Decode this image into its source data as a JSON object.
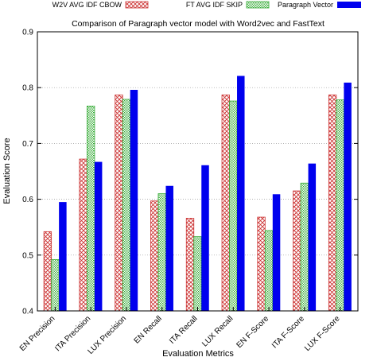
{
  "chart_data": {
    "type": "bar",
    "title": "Comparison of Paragraph vector model with Word2vec and FastText",
    "xlabel": "Evaluation Metrics",
    "ylabel": "Evaluation Score",
    "ylim": [
      0.4,
      0.9
    ],
    "yticks": [
      "0.4",
      "0.5",
      "0.6",
      "0.7",
      "0.8",
      "0.9"
    ],
    "grid": "horizontal dotted",
    "legend": "top, outside plot",
    "categories": [
      "EN Precision",
      "ITA Precision",
      "LUX Precision",
      "EN Recall",
      "ITA Recall",
      "LUX Recall",
      "EN F-Score",
      "ITA F-Score",
      "LUX F-Score"
    ],
    "series": [
      {
        "name": "W2V AVG IDF CBOW",
        "color": "#cc3333",
        "fill": "crosshatch",
        "values": [
          0.542,
          0.672,
          0.787,
          0.597,
          0.566,
          0.787,
          0.568,
          0.615,
          0.787
        ]
      },
      {
        "name": "FT AVG IDF SKIP",
        "color": "#33aa33",
        "fill": "dots",
        "values": [
          0.492,
          0.767,
          0.779,
          0.61,
          0.533,
          0.776,
          0.544,
          0.629,
          0.778
        ]
      },
      {
        "name": "Paragraph Vector",
        "color": "#0000ee",
        "fill": "solid",
        "values": [
          0.595,
          0.667,
          0.796,
          0.624,
          0.661,
          0.821,
          0.609,
          0.664,
          0.809
        ]
      }
    ]
  }
}
